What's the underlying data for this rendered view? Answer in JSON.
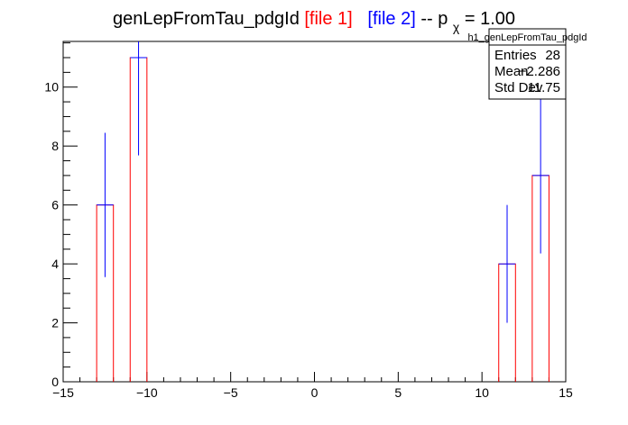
{
  "title": {
    "prefix": "genLepFromTau_pdgId ",
    "file1": "[file 1]",
    "file2": "[file 2]",
    "suffix_before_p": " -- p",
    "p_subscript": "χ",
    "suffix_after_p": " = 1.00",
    "colors": {
      "text": "#000000",
      "file1": "#ff0000",
      "file2": "#0000ff"
    }
  },
  "stats_box": {
    "name": "h1_genLepFromTau_pdgId",
    "rows": [
      {
        "label": "Entries",
        "value": "28"
      },
      {
        "label": "Mean",
        "value": "−2.286"
      },
      {
        "label": "Std Dev",
        "value": "11.75"
      }
    ]
  },
  "chart_data": {
    "type": "bar",
    "xlim": [
      -15,
      15
    ],
    "ylim": [
      0,
      11.55
    ],
    "x_ticks": [
      -15,
      -10,
      -5,
      0,
      5,
      10,
      15
    ],
    "x_tick_labels": [
      "−15",
      "−10",
      "−5",
      "0",
      "5",
      "10",
      "15"
    ],
    "y_ticks": [
      0,
      2,
      4,
      6,
      8,
      10
    ],
    "y_tick_labels": [
      "0",
      "2",
      "4",
      "6",
      "8",
      "10"
    ],
    "xlabel": "",
    "ylabel": "",
    "grid": false,
    "series": [
      {
        "name": "file 1",
        "style": "histogram-outline",
        "color": "#ff0000",
        "bins": [
          {
            "x_low": -13,
            "x_high": -12,
            "value": 6
          },
          {
            "x_low": -11,
            "x_high": -10,
            "value": 11
          },
          {
            "x_low": 11,
            "x_high": 12,
            "value": 4
          },
          {
            "x_low": 13,
            "x_high": 14,
            "value": 7
          }
        ]
      },
      {
        "name": "file 2",
        "style": "points-with-errors",
        "color": "#0000ff",
        "points": [
          {
            "x_low": -13,
            "x_high": -12,
            "value": 6,
            "error": 2.449
          },
          {
            "x_low": -11,
            "x_high": -10,
            "value": 11,
            "error": 3.317
          },
          {
            "x_low": 11,
            "x_high": 12,
            "value": 4,
            "error": 2.0
          },
          {
            "x_low": 13,
            "x_high": 14,
            "value": 7,
            "error": 2.646
          }
        ]
      }
    ]
  }
}
